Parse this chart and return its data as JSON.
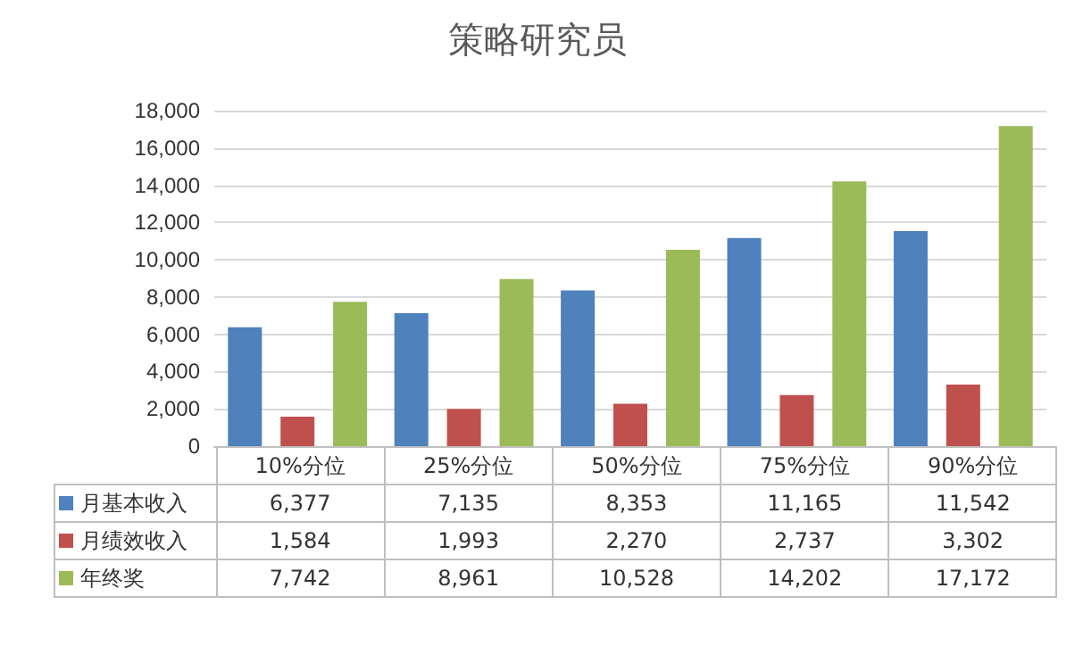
{
  "chart_data": {
    "type": "bar",
    "title": "策略研究员",
    "categories": [
      "10%分位",
      "25%分位",
      "50%分位",
      "75%分位",
      "90%分位"
    ],
    "series": [
      {
        "name": "月基本收入",
        "color": "#4f81bd",
        "values": [
          6377,
          7135,
          8353,
          11165,
          11542
        ],
        "value_labels": [
          "6,377",
          "7,135",
          "8,353",
          "11,165",
          "11,542"
        ]
      },
      {
        "name": "月绩效收入",
        "color": "#c0504d",
        "values": [
          1584,
          1993,
          2270,
          2737,
          3302
        ],
        "value_labels": [
          "1,584",
          "1,993",
          "2,270",
          "2,737",
          "3,302"
        ]
      },
      {
        "name": "年终奖",
        "color": "#9bbb59",
        "values": [
          7742,
          8961,
          10528,
          14202,
          17172
        ],
        "value_labels": [
          "7,742",
          "8,961",
          "10,528",
          "14,202",
          "17,172"
        ]
      }
    ],
    "ylim": [
      0,
      18000
    ],
    "yticks": [
      0,
      {
        "value": 2000,
        "label": "2,000"
      },
      {
        "value": 4000,
        "label": "4,000"
      },
      {
        "value": 6000,
        "label": "6,000"
      },
      {
        "value": 8000,
        "label": "8,000"
      },
      {
        "value": 10000,
        "label": "10,000"
      },
      {
        "value": 12000,
        "label": "12,000"
      },
      {
        "value": 14000,
        "label": "14,000"
      },
      {
        "value": 16000,
        "label": "16,000"
      },
      {
        "value": 18000,
        "label": "18,000"
      }
    ],
    "grid": "y",
    "legend": "bottom left"
  }
}
